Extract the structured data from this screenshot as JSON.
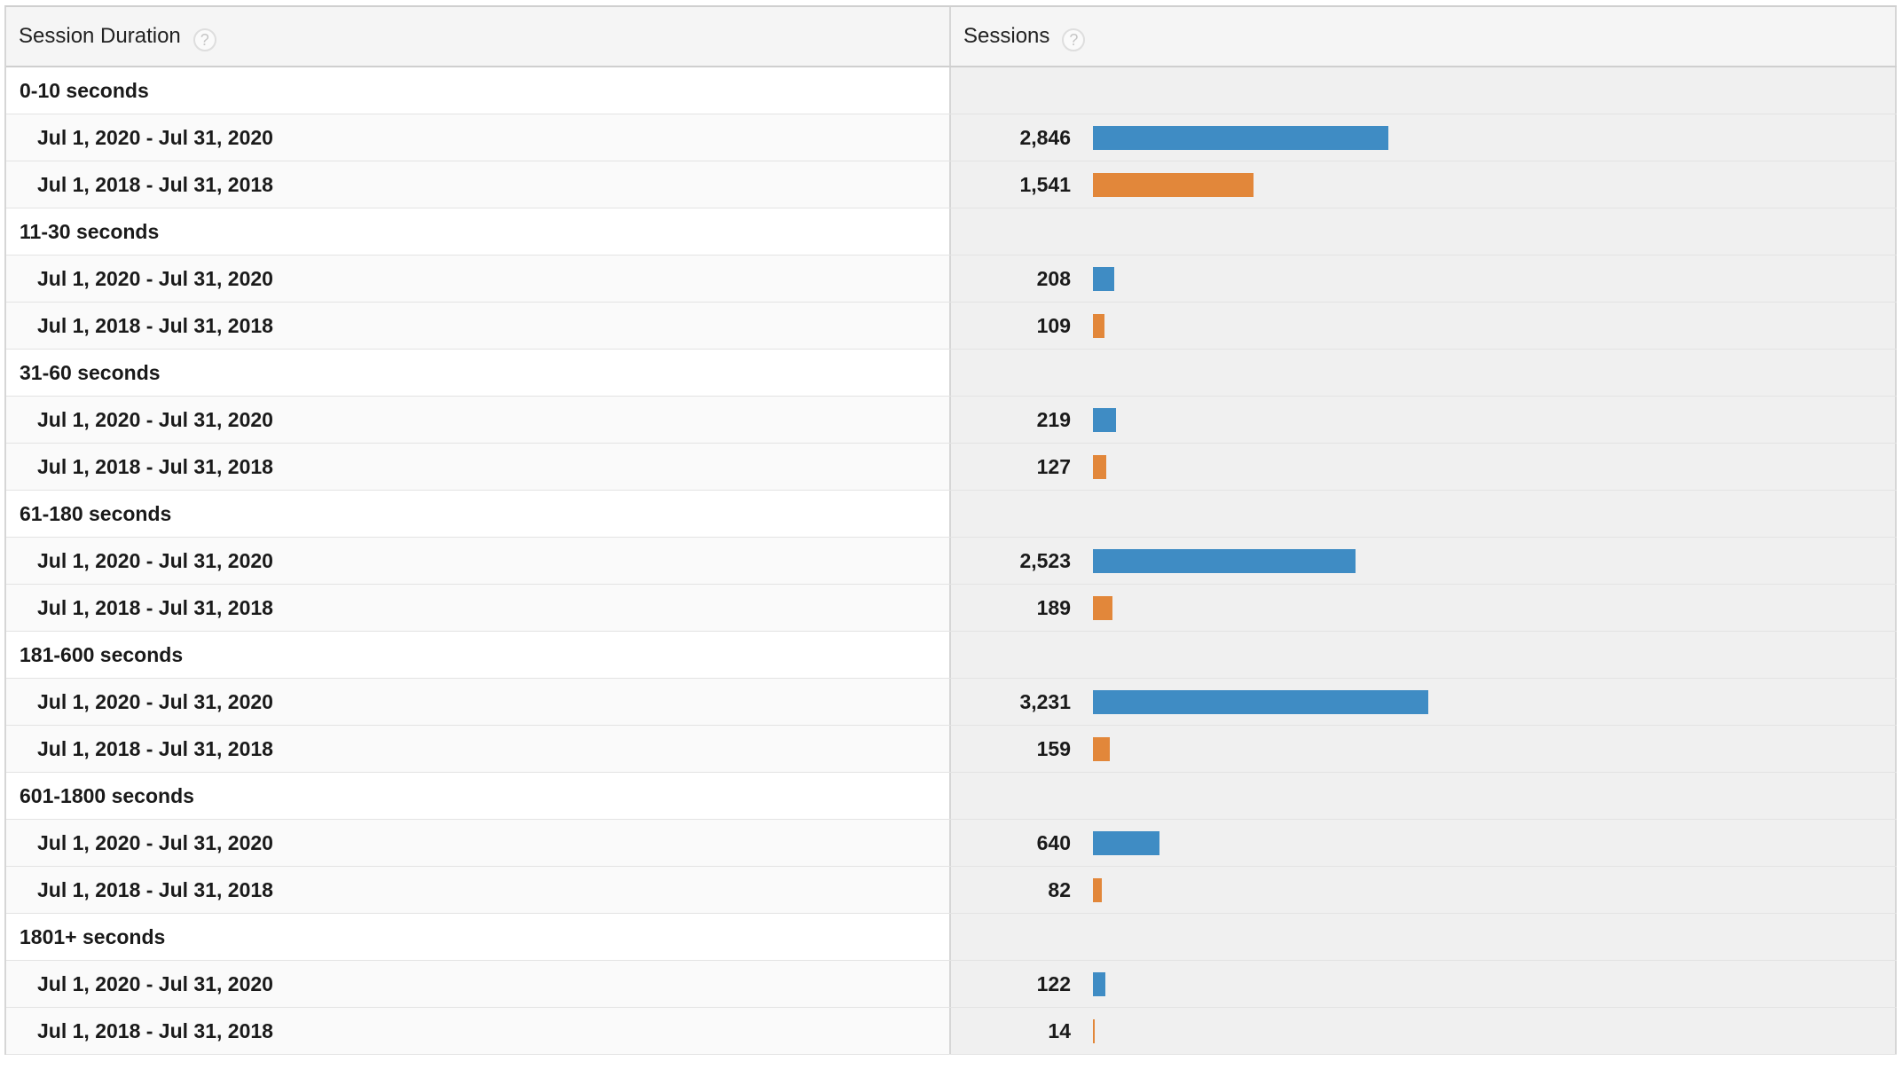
{
  "header": {
    "col1_label": "Session Duration",
    "col2_label": "Sessions",
    "help_glyph": "?"
  },
  "colors": {
    "series_2020": "#3f8cc4",
    "series_2018": "#e2873a"
  },
  "rows": [
    {
      "type": "group",
      "label": "0-10 seconds"
    },
    {
      "type": "sub",
      "label": "Jul 1, 2020 - Jul 31, 2020",
      "value_text": "2,846",
      "value": 2846,
      "series": "2020"
    },
    {
      "type": "sub",
      "label": "Jul 1, 2018 - Jul 31, 2018",
      "value_text": "1,541",
      "value": 1541,
      "series": "2018"
    },
    {
      "type": "group",
      "label": "11-30 seconds"
    },
    {
      "type": "sub",
      "label": "Jul 1, 2020 - Jul 31, 2020",
      "value_text": "208",
      "value": 208,
      "series": "2020"
    },
    {
      "type": "sub",
      "label": "Jul 1, 2018 - Jul 31, 2018",
      "value_text": "109",
      "value": 109,
      "series": "2018"
    },
    {
      "type": "group",
      "label": "31-60 seconds"
    },
    {
      "type": "sub",
      "label": "Jul 1, 2020 - Jul 31, 2020",
      "value_text": "219",
      "value": 219,
      "series": "2020"
    },
    {
      "type": "sub",
      "label": "Jul 1, 2018 - Jul 31, 2018",
      "value_text": "127",
      "value": 127,
      "series": "2018"
    },
    {
      "type": "group",
      "label": "61-180 seconds"
    },
    {
      "type": "sub",
      "label": "Jul 1, 2020 - Jul 31, 2020",
      "value_text": "2,523",
      "value": 2523,
      "series": "2020"
    },
    {
      "type": "sub",
      "label": "Jul 1, 2018 - Jul 31, 2018",
      "value_text": "189",
      "value": 189,
      "series": "2018"
    },
    {
      "type": "group",
      "label": "181-600 seconds"
    },
    {
      "type": "sub",
      "label": "Jul 1, 2020 - Jul 31, 2020",
      "value_text": "3,231",
      "value": 3231,
      "series": "2020"
    },
    {
      "type": "sub",
      "label": "Jul 1, 2018 - Jul 31, 2018",
      "value_text": "159",
      "value": 159,
      "series": "2018"
    },
    {
      "type": "group",
      "label": "601-1800 seconds"
    },
    {
      "type": "sub",
      "label": "Jul 1, 2020 - Jul 31, 2020",
      "value_text": "640",
      "value": 640,
      "series": "2020"
    },
    {
      "type": "sub",
      "label": "Jul 1, 2018 - Jul 31, 2018",
      "value_text": "82",
      "value": 82,
      "series": "2018"
    },
    {
      "type": "group",
      "label": "1801+ seconds"
    },
    {
      "type": "sub",
      "label": "Jul 1, 2020 - Jul 31, 2020",
      "value_text": "122",
      "value": 122,
      "series": "2020"
    },
    {
      "type": "sub",
      "label": "Jul 1, 2018 - Jul 31, 2018",
      "value_text": "14",
      "value": 14,
      "series": "2018"
    }
  ],
  "chart_data": {
    "type": "bar",
    "orientation": "horizontal",
    "categories": [
      "0-10 seconds",
      "11-30 seconds",
      "31-60 seconds",
      "61-180 seconds",
      "181-600 seconds",
      "601-1800 seconds",
      "1801+ seconds"
    ],
    "series": [
      {
        "name": "Jul 1, 2020 - Jul 31, 2020",
        "values": [
          2846,
          208,
          219,
          2523,
          3231,
          640,
          122
        ]
      },
      {
        "name": "Jul 1, 2018 - Jul 31, 2018",
        "values": [
          1541,
          109,
          127,
          189,
          159,
          82,
          14
        ]
      }
    ],
    "xlabel": "Sessions",
    "ylabel": "Session Duration",
    "xlim": [
      0,
      9100
    ],
    "grid": false
  }
}
